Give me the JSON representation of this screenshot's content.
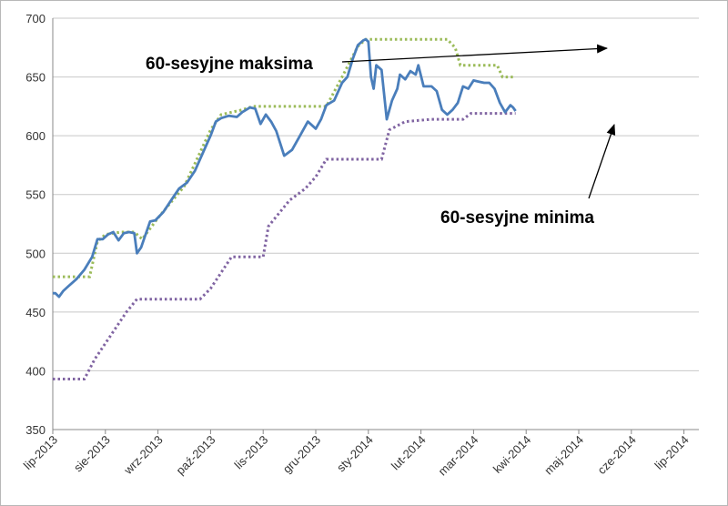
{
  "chart_data": {
    "type": "line",
    "title": "",
    "xlabel": "",
    "ylabel": "",
    "ylim": [
      350,
      700
    ],
    "y_ticks": [
      350,
      400,
      450,
      500,
      550,
      600,
      650,
      700
    ],
    "x_tick_labels": [
      "lip-2013",
      "sie-2013",
      "wrz-2013",
      "paź-2013",
      "lis-2013",
      "gru-2013",
      "sty-2014",
      "lut-2014",
      "mar-2014",
      "kwi-2014",
      "maj-2014",
      "cze-2014",
      "lip-2014"
    ],
    "grid": "horizontal",
    "legend": "none",
    "colors": {
      "price": "#4a7ebb",
      "max": "#9bbb59",
      "min": "#8064a2"
    },
    "series": [
      {
        "key": "price",
        "style": "solid",
        "values": [
          [
            0,
            466
          ],
          [
            0.05,
            466
          ],
          [
            0.12,
            463
          ],
          [
            0.2,
            468
          ],
          [
            0.3,
            472
          ],
          [
            0.45,
            478
          ],
          [
            0.6,
            486
          ],
          [
            0.75,
            497
          ],
          [
            0.85,
            512
          ],
          [
            0.95,
            512
          ],
          [
            1.05,
            516
          ],
          [
            1.15,
            518
          ],
          [
            1.25,
            511
          ],
          [
            1.35,
            517
          ],
          [
            1.45,
            518
          ],
          [
            1.55,
            517
          ],
          [
            1.6,
            500
          ],
          [
            1.68,
            505
          ],
          [
            1.75,
            514
          ],
          [
            1.85,
            527
          ],
          [
            1.95,
            528
          ],
          [
            2.1,
            535
          ],
          [
            2.25,
            545
          ],
          [
            2.4,
            555
          ],
          [
            2.55,
            560
          ],
          [
            2.7,
            570
          ],
          [
            2.85,
            585
          ],
          [
            3.0,
            600
          ],
          [
            3.1,
            612
          ],
          [
            3.2,
            615
          ],
          [
            3.35,
            617
          ],
          [
            3.5,
            616
          ],
          [
            3.6,
            620
          ],
          [
            3.75,
            624
          ],
          [
            3.85,
            623
          ],
          [
            3.95,
            610
          ],
          [
            4.05,
            618
          ],
          [
            4.15,
            612
          ],
          [
            4.25,
            604
          ],
          [
            4.4,
            583
          ],
          [
            4.55,
            588
          ],
          [
            4.7,
            600
          ],
          [
            4.85,
            612
          ],
          [
            5.0,
            606
          ],
          [
            5.1,
            614
          ],
          [
            5.2,
            626
          ],
          [
            5.35,
            630
          ],
          [
            5.5,
            645
          ],
          [
            5.6,
            650
          ],
          [
            5.7,
            665
          ],
          [
            5.8,
            677
          ],
          [
            5.9,
            681
          ],
          [
            5.95,
            682
          ],
          [
            6.0,
            680
          ],
          [
            6.05,
            650
          ],
          [
            6.1,
            640
          ],
          [
            6.15,
            660
          ],
          [
            6.25,
            656
          ],
          [
            6.35,
            614
          ],
          [
            6.45,
            630
          ],
          [
            6.55,
            640
          ],
          [
            6.6,
            652
          ],
          [
            6.7,
            648
          ],
          [
            6.8,
            655
          ],
          [
            6.9,
            652
          ],
          [
            6.95,
            660
          ],
          [
            7.05,
            642
          ],
          [
            7.2,
            642
          ],
          [
            7.3,
            638
          ],
          [
            7.4,
            622
          ],
          [
            7.5,
            618
          ],
          [
            7.6,
            622
          ],
          [
            7.7,
            628
          ],
          [
            7.8,
            642
          ],
          [
            7.9,
            640
          ],
          [
            8.0,
            647
          ],
          [
            8.1,
            646
          ],
          [
            8.2,
            645
          ],
          [
            8.3,
            645
          ],
          [
            8.4,
            640
          ],
          [
            8.5,
            628
          ],
          [
            8.6,
            620
          ],
          [
            8.7,
            626
          ],
          [
            8.75,
            624
          ],
          [
            8.8,
            621
          ]
        ]
      },
      {
        "key": "max",
        "style": "dotted",
        "values": [
          [
            0,
            480
          ],
          [
            0.7,
            480
          ],
          [
            0.85,
            510
          ],
          [
            1.0,
            516
          ],
          [
            1.3,
            518
          ],
          [
            1.55,
            518
          ],
          [
            1.7,
            512
          ],
          [
            2.0,
            530
          ],
          [
            2.5,
            557
          ],
          [
            3.0,
            605
          ],
          [
            3.2,
            618
          ],
          [
            3.6,
            622
          ],
          [
            3.8,
            625
          ],
          [
            5.2,
            625
          ],
          [
            5.5,
            650
          ],
          [
            5.8,
            676
          ],
          [
            5.95,
            682
          ],
          [
            7.5,
            682
          ],
          [
            7.65,
            675
          ],
          [
            7.75,
            660
          ],
          [
            8.45,
            660
          ],
          [
            8.55,
            650
          ],
          [
            8.8,
            650
          ]
        ]
      },
      {
        "key": "min",
        "style": "dotted",
        "values": [
          [
            0,
            393
          ],
          [
            0.6,
            393
          ],
          [
            0.8,
            410
          ],
          [
            1.1,
            430
          ],
          [
            1.4,
            450
          ],
          [
            1.6,
            461
          ],
          [
            2.8,
            461
          ],
          [
            3.0,
            470
          ],
          [
            3.4,
            497
          ],
          [
            4.0,
            497
          ],
          [
            4.1,
            523
          ],
          [
            4.5,
            545
          ],
          [
            4.8,
            555
          ],
          [
            5.0,
            565
          ],
          [
            5.2,
            580
          ],
          [
            6.25,
            580
          ],
          [
            6.4,
            605
          ],
          [
            6.7,
            612
          ],
          [
            7.2,
            614
          ],
          [
            7.8,
            614
          ],
          [
            7.95,
            619
          ],
          [
            8.8,
            619
          ]
        ]
      }
    ],
    "annotations": [
      {
        "text": "60-sesyjne maksima",
        "target_series": "max"
      },
      {
        "text": "60-sesyjne minima",
        "target_series": "min"
      }
    ]
  }
}
